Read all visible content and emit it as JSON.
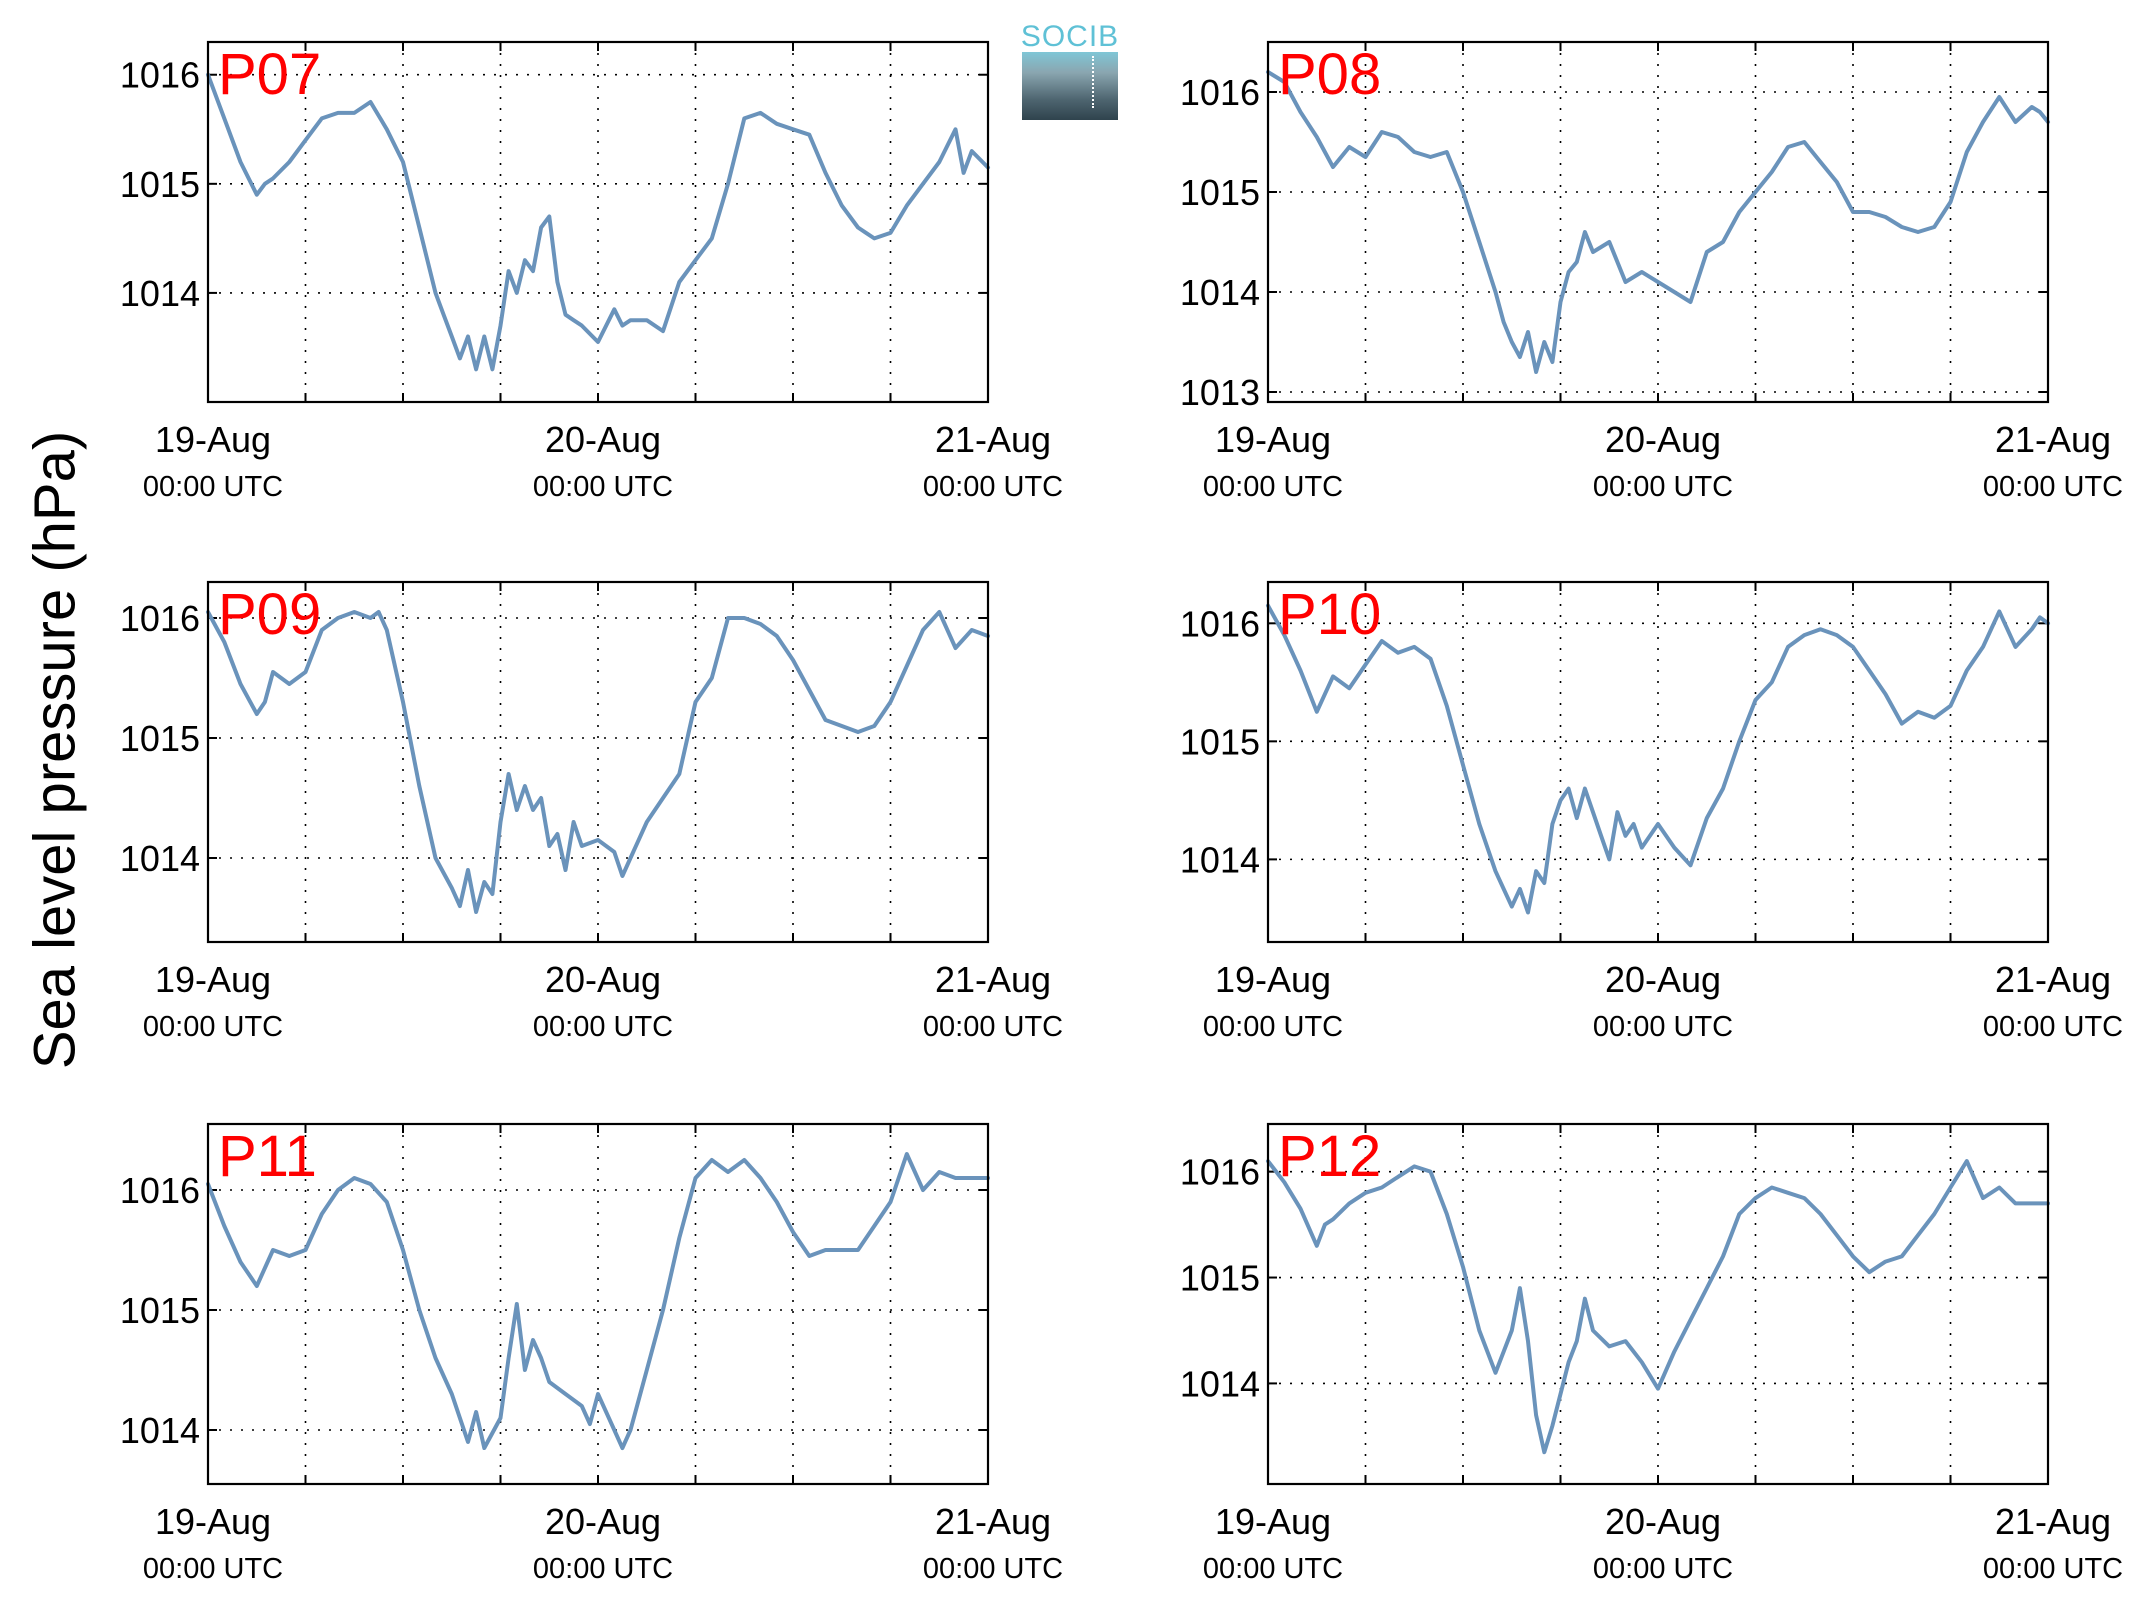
{
  "ylabel": "Sea level pressure (hPa)",
  "logo": {
    "text": "SOCIB",
    "colors": {
      "text": "#5fc1d6",
      "box_top": "#7fc6d6",
      "box_bottom": "#2f434d"
    }
  },
  "colors": {
    "line": "#6a93bb",
    "label": "#ff0000",
    "grid": "#000000"
  },
  "chart_data": [
    {
      "type": "line",
      "title": "P07",
      "ylim": [
        1013.0,
        1016.3
      ],
      "yticks": [
        1014,
        1015,
        1016
      ],
      "xticks": [
        "19-Aug 00:00 UTC",
        "20-Aug 00:00 UTC",
        "21-Aug 00:00 UTC"
      ],
      "xrange_hours": [
        0,
        48
      ],
      "grid": true,
      "x_hours": [
        0,
        1,
        2,
        3,
        3.5,
        4,
        5,
        6,
        7,
        8,
        9,
        10,
        11,
        12,
        13,
        14,
        14.5,
        15,
        15.5,
        16,
        16.5,
        17,
        17.5,
        18,
        18.5,
        19,
        19.5,
        20,
        20.5,
        21,
        21.5,
        22,
        22.5,
        23,
        24,
        25,
        25.5,
        26,
        27,
        28,
        29,
        30,
        31,
        32,
        33,
        34,
        35,
        36,
        37,
        38,
        39,
        40,
        40.5,
        41,
        42,
        43,
        44,
        45,
        46,
        46.5,
        47,
        48
      ],
      "values": [
        1016.0,
        1015.6,
        1015.2,
        1014.9,
        1015.0,
        1015.05,
        1015.2,
        1015.4,
        1015.6,
        1015.65,
        1015.65,
        1015.75,
        1015.5,
        1015.2,
        1014.6,
        1014.0,
        1013.8,
        1013.6,
        1013.4,
        1013.6,
        1013.3,
        1013.6,
        1013.3,
        1013.7,
        1014.2,
        1014.0,
        1014.3,
        1014.2,
        1014.6,
        1014.7,
        1014.1,
        1013.8,
        1013.75,
        1013.7,
        1013.55,
        1013.85,
        1013.7,
        1013.75,
        1013.75,
        1013.65,
        1014.1,
        1014.3,
        1014.5,
        1015.0,
        1015.6,
        1015.65,
        1015.55,
        1015.5,
        1015.45,
        1015.1,
        1014.8,
        1014.6,
        1014.55,
        1014.5,
        1014.55,
        1014.8,
        1015.0,
        1015.2,
        1015.5,
        1015.1,
        1015.3,
        1015.15
      ]
    },
    {
      "type": "line",
      "title": "P08",
      "ylim": [
        1012.9,
        1016.5
      ],
      "yticks": [
        1013,
        1014,
        1015,
        1016
      ],
      "xticks": [
        "19-Aug 00:00 UTC",
        "20-Aug 00:00 UTC",
        "21-Aug 00:00 UTC"
      ],
      "xrange_hours": [
        0,
        48
      ],
      "grid": true,
      "x_hours": [
        0,
        1,
        2,
        3,
        4,
        5,
        6,
        7,
        8,
        9,
        10,
        11,
        12,
        13,
        14,
        14.5,
        15,
        15.5,
        16,
        16.5,
        17,
        17.5,
        18,
        18.5,
        19,
        19.5,
        20,
        21,
        22,
        23,
        24,
        25,
        26,
        27,
        28,
        29,
        30,
        31,
        32,
        33,
        34,
        35,
        36,
        37,
        38,
        39,
        40,
        41,
        42,
        43,
        44,
        45,
        46,
        47,
        47.5,
        48
      ],
      "values": [
        1016.2,
        1016.1,
        1015.8,
        1015.55,
        1015.25,
        1015.45,
        1015.35,
        1015.6,
        1015.55,
        1015.4,
        1015.35,
        1015.4,
        1015.0,
        1014.5,
        1014.0,
        1013.7,
        1013.5,
        1013.35,
        1013.6,
        1013.2,
        1013.5,
        1013.3,
        1013.9,
        1014.2,
        1014.3,
        1014.6,
        1014.4,
        1014.5,
        1014.1,
        1014.2,
        1014.1,
        1014.0,
        1013.9,
        1014.4,
        1014.5,
        1014.8,
        1015.0,
        1015.2,
        1015.45,
        1015.5,
        1015.3,
        1015.1,
        1014.8,
        1014.8,
        1014.75,
        1014.65,
        1014.6,
        1014.65,
        1014.9,
        1015.4,
        1015.7,
        1015.95,
        1015.7,
        1015.85,
        1015.8,
        1015.7
      ]
    },
    {
      "type": "line",
      "title": "P09",
      "ylim": [
        1013.3,
        1016.3
      ],
      "yticks": [
        1014,
        1015,
        1016
      ],
      "xticks": [
        "19-Aug 00:00 UTC",
        "20-Aug 00:00 UTC",
        "21-Aug 00:00 UTC"
      ],
      "xrange_hours": [
        0,
        48
      ],
      "grid": true,
      "x_hours": [
        0,
        1,
        2,
        3,
        3.5,
        4,
        5,
        6,
        7,
        8,
        9,
        10,
        10.5,
        11,
        12,
        13,
        14,
        15,
        15.5,
        16,
        16.5,
        17,
        17.5,
        18,
        18.5,
        19,
        19.5,
        20,
        20.5,
        21,
        21.5,
        22,
        22.5,
        23,
        24,
        25,
        25.5,
        26,
        27,
        28,
        29,
        30,
        31,
        32,
        33,
        34,
        35,
        36,
        37,
        38,
        39,
        40,
        41,
        42,
        43,
        44,
        45,
        46,
        47,
        48
      ],
      "values": [
        1016.05,
        1015.8,
        1015.45,
        1015.2,
        1015.3,
        1015.55,
        1015.45,
        1015.55,
        1015.9,
        1016.0,
        1016.05,
        1016.0,
        1016.05,
        1015.9,
        1015.3,
        1014.6,
        1014.0,
        1013.75,
        1013.6,
        1013.9,
        1013.55,
        1013.8,
        1013.7,
        1014.3,
        1014.7,
        1014.4,
        1014.6,
        1014.4,
        1014.5,
        1014.1,
        1014.2,
        1013.9,
        1014.3,
        1014.1,
        1014.15,
        1014.05,
        1013.85,
        1014.0,
        1014.3,
        1014.5,
        1014.7,
        1015.3,
        1015.5,
        1016.0,
        1016.0,
        1015.95,
        1015.85,
        1015.65,
        1015.4,
        1015.15,
        1015.1,
        1015.05,
        1015.1,
        1015.3,
        1015.6,
        1015.9,
        1016.05,
        1015.75,
        1015.9,
        1015.85
      ]
    },
    {
      "type": "line",
      "title": "P10",
      "ylim": [
        1013.3,
        1016.35
      ],
      "yticks": [
        1014,
        1015,
        1016
      ],
      "xticks": [
        "19-Aug 00:00 UTC",
        "20-Aug 00:00 UTC",
        "21-Aug 00:00 UTC"
      ],
      "xrange_hours": [
        0,
        48
      ],
      "grid": true,
      "x_hours": [
        0,
        1,
        2,
        3,
        3.5,
        4,
        5,
        6,
        7,
        8,
        9,
        10,
        11,
        12,
        13,
        14,
        15,
        15.5,
        16,
        16.5,
        17,
        17.5,
        18,
        18.5,
        19,
        19.5,
        20,
        20.5,
        21,
        21.5,
        22,
        22.5,
        23,
        24,
        25,
        26,
        27,
        28,
        29,
        30,
        31,
        32,
        33,
        34,
        35,
        36,
        37,
        38,
        39,
        40,
        41,
        42,
        43,
        44,
        45,
        46,
        47,
        47.5,
        48
      ],
      "values": [
        1016.15,
        1015.9,
        1015.6,
        1015.25,
        1015.4,
        1015.55,
        1015.45,
        1015.65,
        1015.85,
        1015.75,
        1015.8,
        1015.7,
        1015.3,
        1014.8,
        1014.3,
        1013.9,
        1013.6,
        1013.75,
        1013.55,
        1013.9,
        1013.8,
        1014.3,
        1014.5,
        1014.6,
        1014.35,
        1014.6,
        1014.4,
        1014.2,
        1014.0,
        1014.4,
        1014.2,
        1014.3,
        1014.1,
        1014.3,
        1014.1,
        1013.95,
        1014.35,
        1014.6,
        1015.0,
        1015.35,
        1015.5,
        1015.8,
        1015.9,
        1015.95,
        1015.9,
        1015.8,
        1015.6,
        1015.4,
        1015.15,
        1015.25,
        1015.2,
        1015.3,
        1015.6,
        1015.8,
        1016.1,
        1015.8,
        1015.95,
        1016.05,
        1016.0
      ]
    },
    {
      "type": "line",
      "title": "P11",
      "ylim": [
        1013.55,
        1016.55
      ],
      "yticks": [
        1014,
        1015,
        1016
      ],
      "xticks": [
        "19-Aug 00:00 UTC",
        "20-Aug 00:00 UTC",
        "21-Aug 00:00 UTC"
      ],
      "xrange_hours": [
        0,
        48
      ],
      "grid": true,
      "x_hours": [
        0,
        1,
        2,
        3,
        3.5,
        4,
        5,
        6,
        7,
        8,
        9,
        10,
        11,
        12,
        13,
        14,
        15,
        15.5,
        16,
        16.5,
        17,
        18,
        18.5,
        19,
        19.5,
        20,
        20.5,
        21,
        22,
        23,
        23.5,
        24,
        25,
        25.5,
        26,
        27,
        28,
        29,
        30,
        31,
        32,
        33,
        34,
        35,
        36,
        37,
        38,
        39,
        40,
        41,
        42,
        43,
        44,
        45,
        46,
        47,
        48
      ],
      "values": [
        1016.05,
        1015.7,
        1015.4,
        1015.2,
        1015.35,
        1015.5,
        1015.45,
        1015.5,
        1015.8,
        1016.0,
        1016.1,
        1016.05,
        1015.9,
        1015.5,
        1015.0,
        1014.6,
        1014.3,
        1014.1,
        1013.9,
        1014.15,
        1013.85,
        1014.1,
        1014.6,
        1015.05,
        1014.5,
        1014.75,
        1014.6,
        1014.4,
        1014.3,
        1014.2,
        1014.05,
        1014.3,
        1014.0,
        1013.85,
        1014.0,
        1014.5,
        1015.0,
        1015.6,
        1016.1,
        1016.25,
        1016.15,
        1016.25,
        1016.1,
        1015.9,
        1015.65,
        1015.45,
        1015.5,
        1015.5,
        1015.5,
        1015.7,
        1015.9,
        1016.3,
        1016.0,
        1016.15,
        1016.1,
        1016.1,
        1016.1
      ]
    },
    {
      "type": "line",
      "title": "P12",
      "ylim": [
        1013.05,
        1016.45
      ],
      "yticks": [
        1014,
        1015,
        1016
      ],
      "xticks": [
        "19-Aug 00:00 UTC",
        "20-Aug 00:00 UTC",
        "21-Aug 00:00 UTC"
      ],
      "xrange_hours": [
        0,
        48
      ],
      "grid": true,
      "x_hours": [
        0,
        1,
        2,
        3,
        3.5,
        4,
        5,
        6,
        7,
        8,
        9,
        10,
        11,
        12,
        13,
        14,
        15,
        15.5,
        16,
        16.5,
        17,
        17.5,
        18,
        18.5,
        19,
        19.5,
        20,
        21,
        22,
        23,
        24,
        25,
        26,
        27,
        28,
        29,
        30,
        31,
        32,
        33,
        34,
        35,
        36,
        37,
        38,
        39,
        40,
        41,
        42,
        43,
        44,
        45,
        46,
        47,
        48
      ],
      "values": [
        1016.1,
        1015.9,
        1015.65,
        1015.3,
        1015.5,
        1015.55,
        1015.7,
        1015.8,
        1015.85,
        1015.95,
        1016.05,
        1016.0,
        1015.6,
        1015.1,
        1014.5,
        1014.1,
        1014.5,
        1014.9,
        1014.4,
        1013.7,
        1013.35,
        1013.6,
        1013.9,
        1014.2,
        1014.4,
        1014.8,
        1014.5,
        1014.35,
        1014.4,
        1014.2,
        1013.95,
        1014.3,
        1014.6,
        1014.9,
        1015.2,
        1015.6,
        1015.75,
        1015.85,
        1015.8,
        1015.75,
        1015.6,
        1015.4,
        1015.2,
        1015.05,
        1015.15,
        1015.2,
        1015.4,
        1015.6,
        1015.85,
        1016.1,
        1015.75,
        1015.85,
        1015.7,
        1015.7,
        1015.7
      ]
    }
  ]
}
